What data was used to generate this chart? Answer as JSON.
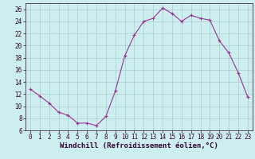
{
  "x": [
    0,
    1,
    2,
    3,
    4,
    5,
    6,
    7,
    8,
    9,
    10,
    11,
    12,
    13,
    14,
    15,
    16,
    17,
    18,
    19,
    20,
    21,
    22,
    23
  ],
  "y": [
    12.8,
    11.7,
    10.5,
    9.0,
    8.5,
    7.2,
    7.2,
    6.8,
    8.3,
    12.5,
    18.3,
    21.7,
    24.0,
    24.5,
    26.2,
    25.3,
    24.0,
    25.0,
    24.5,
    24.2,
    20.8,
    18.8,
    15.5,
    11.5
  ],
  "line_color": "#993399",
  "marker": "+",
  "marker_size": 3,
  "xlabel": "Windchill (Refroidissement éolien,°C)",
  "xlabel_fontsize": 6.5,
  "ylim": [
    6,
    27
  ],
  "xlim": [
    -0.5,
    23.5
  ],
  "yticks": [
    6,
    8,
    10,
    12,
    14,
    16,
    18,
    20,
    22,
    24,
    26
  ],
  "xticks": [
    0,
    1,
    2,
    3,
    4,
    5,
    6,
    7,
    8,
    9,
    10,
    11,
    12,
    13,
    14,
    15,
    16,
    17,
    18,
    19,
    20,
    21,
    22,
    23
  ],
  "grid_color": "#aacccc",
  "bg_color": "#cceeee",
  "tick_fontsize": 5.5
}
